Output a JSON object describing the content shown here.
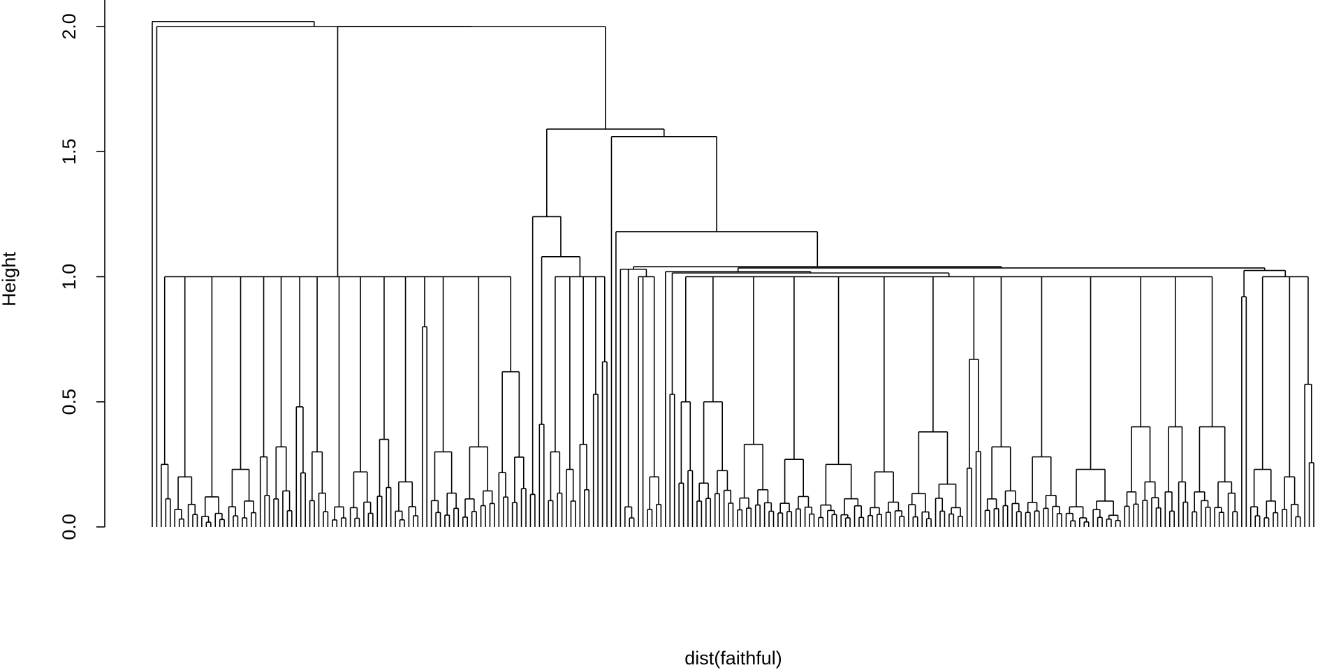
{
  "chart_data": {
    "type": "dendrogram",
    "title": "",
    "xlabel": "dist(faithful)",
    "ylabel": "Height",
    "ylim": [
      0,
      2.05
    ],
    "yticks": [
      {
        "value": 0.0,
        "label": "0.0"
      },
      {
        "value": 0.5,
        "label": "0.5"
      },
      {
        "value": 1.0,
        "label": "1.0"
      },
      {
        "value": 1.5,
        "label": "1.5"
      },
      {
        "value": 2.0,
        "label": "2.0"
      }
    ],
    "tree_note": "L = single observation, [h, n] = small cluster of n observations merging at height h, {h, c} = merge at height h",
    "tree": {
      "h": 2.02,
      "c": [
        "L",
        {
          "h": 2.0,
          "c": [
            "L",
            {
              "h": 2.0,
              "c": [
                {
                  "h": 1.0,
                  "c": [
                    [
                      0.25,
                      3
                    ],
                    [
                      0.2,
                      6
                    ],
                    [
                      0.12,
                      6
                    ],
                    [
                      0.23,
                      7
                    ],
                    [
                      0.28,
                      3
                    ],
                    [
                      0.32,
                      5
                    ],
                    [
                      0.48,
                      3
                    ],
                    [
                      0.3,
                      5
                    ],
                    [
                      0.08,
                      4
                    ],
                    [
                      0.22,
                      6
                    ],
                    [
                      0.35,
                      4
                    ],
                    [
                      0.18,
                      6
                    ],
                    [
                      0.8,
                      2
                    ],
                    [
                      0.3,
                      7
                    ],
                    [
                      0.32,
                      8
                    ],
                    [
                      0.62,
                      7
                    ]
                  ]
                },
                {
                  "h": 1.59,
                  "c": [
                    {
                      "h": 1.24,
                      "c": [
                        [
                          0.13,
                          2
                        ],
                        {
                          "h": 1.08,
                          "c": [
                            [
                              0.41,
                              2
                            ],
                            {
                              "h": 1.0,
                              "c": [
                                [
                                  0.3,
                                  4
                                ],
                                [
                                  0.23,
                                  3
                                ],
                                [
                                  0.33,
                                  3
                                ],
                                [
                                  0.53,
                                  2
                                ],
                                [
                                  0.66,
                                  2
                                ]
                              ]
                            }
                          ]
                        }
                      ]
                    },
                    {
                      "h": 1.56,
                      "c": [
                        "L",
                        {
                          "h": 1.18,
                          "c": [
                            "L",
                            {
                              "h": 1.04,
                              "c": [
                                {
                                  "h": 1.03,
                                  "c": [
                                    "L",
                                    [
                                      0.08,
                                      3
                                    ],
                                    {
                                      "h": 1.0,
                                      "c": [
                                        "L",
                                        "L",
                                        [
                                          0.2,
                                          4
                                        ]
                                      ]
                                    }
                                  ]
                                },
                                {
                                  "h": 1.035,
                                  "c": [
                                    {
                                      "h": 1.02,
                                      "c": [
                                        "L",
                                        {
                                          "h": 1.015,
                                          "c": [
                                            [
                                              0.53,
                                              2
                                            ],
                                            {
                                              "h": 1.0,
                                              "c": [
                                                [
                                                  0.5,
                                                  4
                                                ],
                                                [
                                                  0.5,
                                                  9
                                                ],
                                                [
                                                  0.33,
                                                  9
                                                ],
                                                [
                                                  0.27,
                                                  9
                                                ],
                                                [
                                                  0.25,
                                                  11
                                                ],
                                                [
                                                  0.22,
                                                  9
                                                ],
                                                [
                                                  0.38,
                                                  13
                                                ],
                                                [
                                                  0.67,
                                                  4
                                                ],
                                                [
                                                  0.32,
                                                  9
                                                ],
                                                [
                                                  0.28,
                                                  9
                                                ],
                                                [
                                                  0.23,
                                                  13
                                                ],
                                                [
                                                  0.4,
                                                  9
                                                ],
                                                [
                                                  0.4,
                                                  6
                                                ],
                                                [
                                                  0.4,
                                                  11
                                                ]
                                              ]
                                            }
                                          ]
                                        }
                                      ]
                                    },
                                    {
                                      "h": 1.025,
                                      "c": [
                                        [
                                          0.92,
                                          2
                                        ],
                                        {
                                          "h": 1.0,
                                          "c": [
                                            [
                                              0.23,
                                              7
                                            ],
                                            [
                                              0.2,
                                              5
                                            ],
                                            [
                                              0.57,
                                              3
                                            ]
                                          ]
                                        }
                                      ]
                                    }
                                  ]
                                }
                              ]
                            }
                          ]
                        }
                      ]
                    }
                  ]
                }
              ]
            }
          ]
        }
      ]
    }
  }
}
